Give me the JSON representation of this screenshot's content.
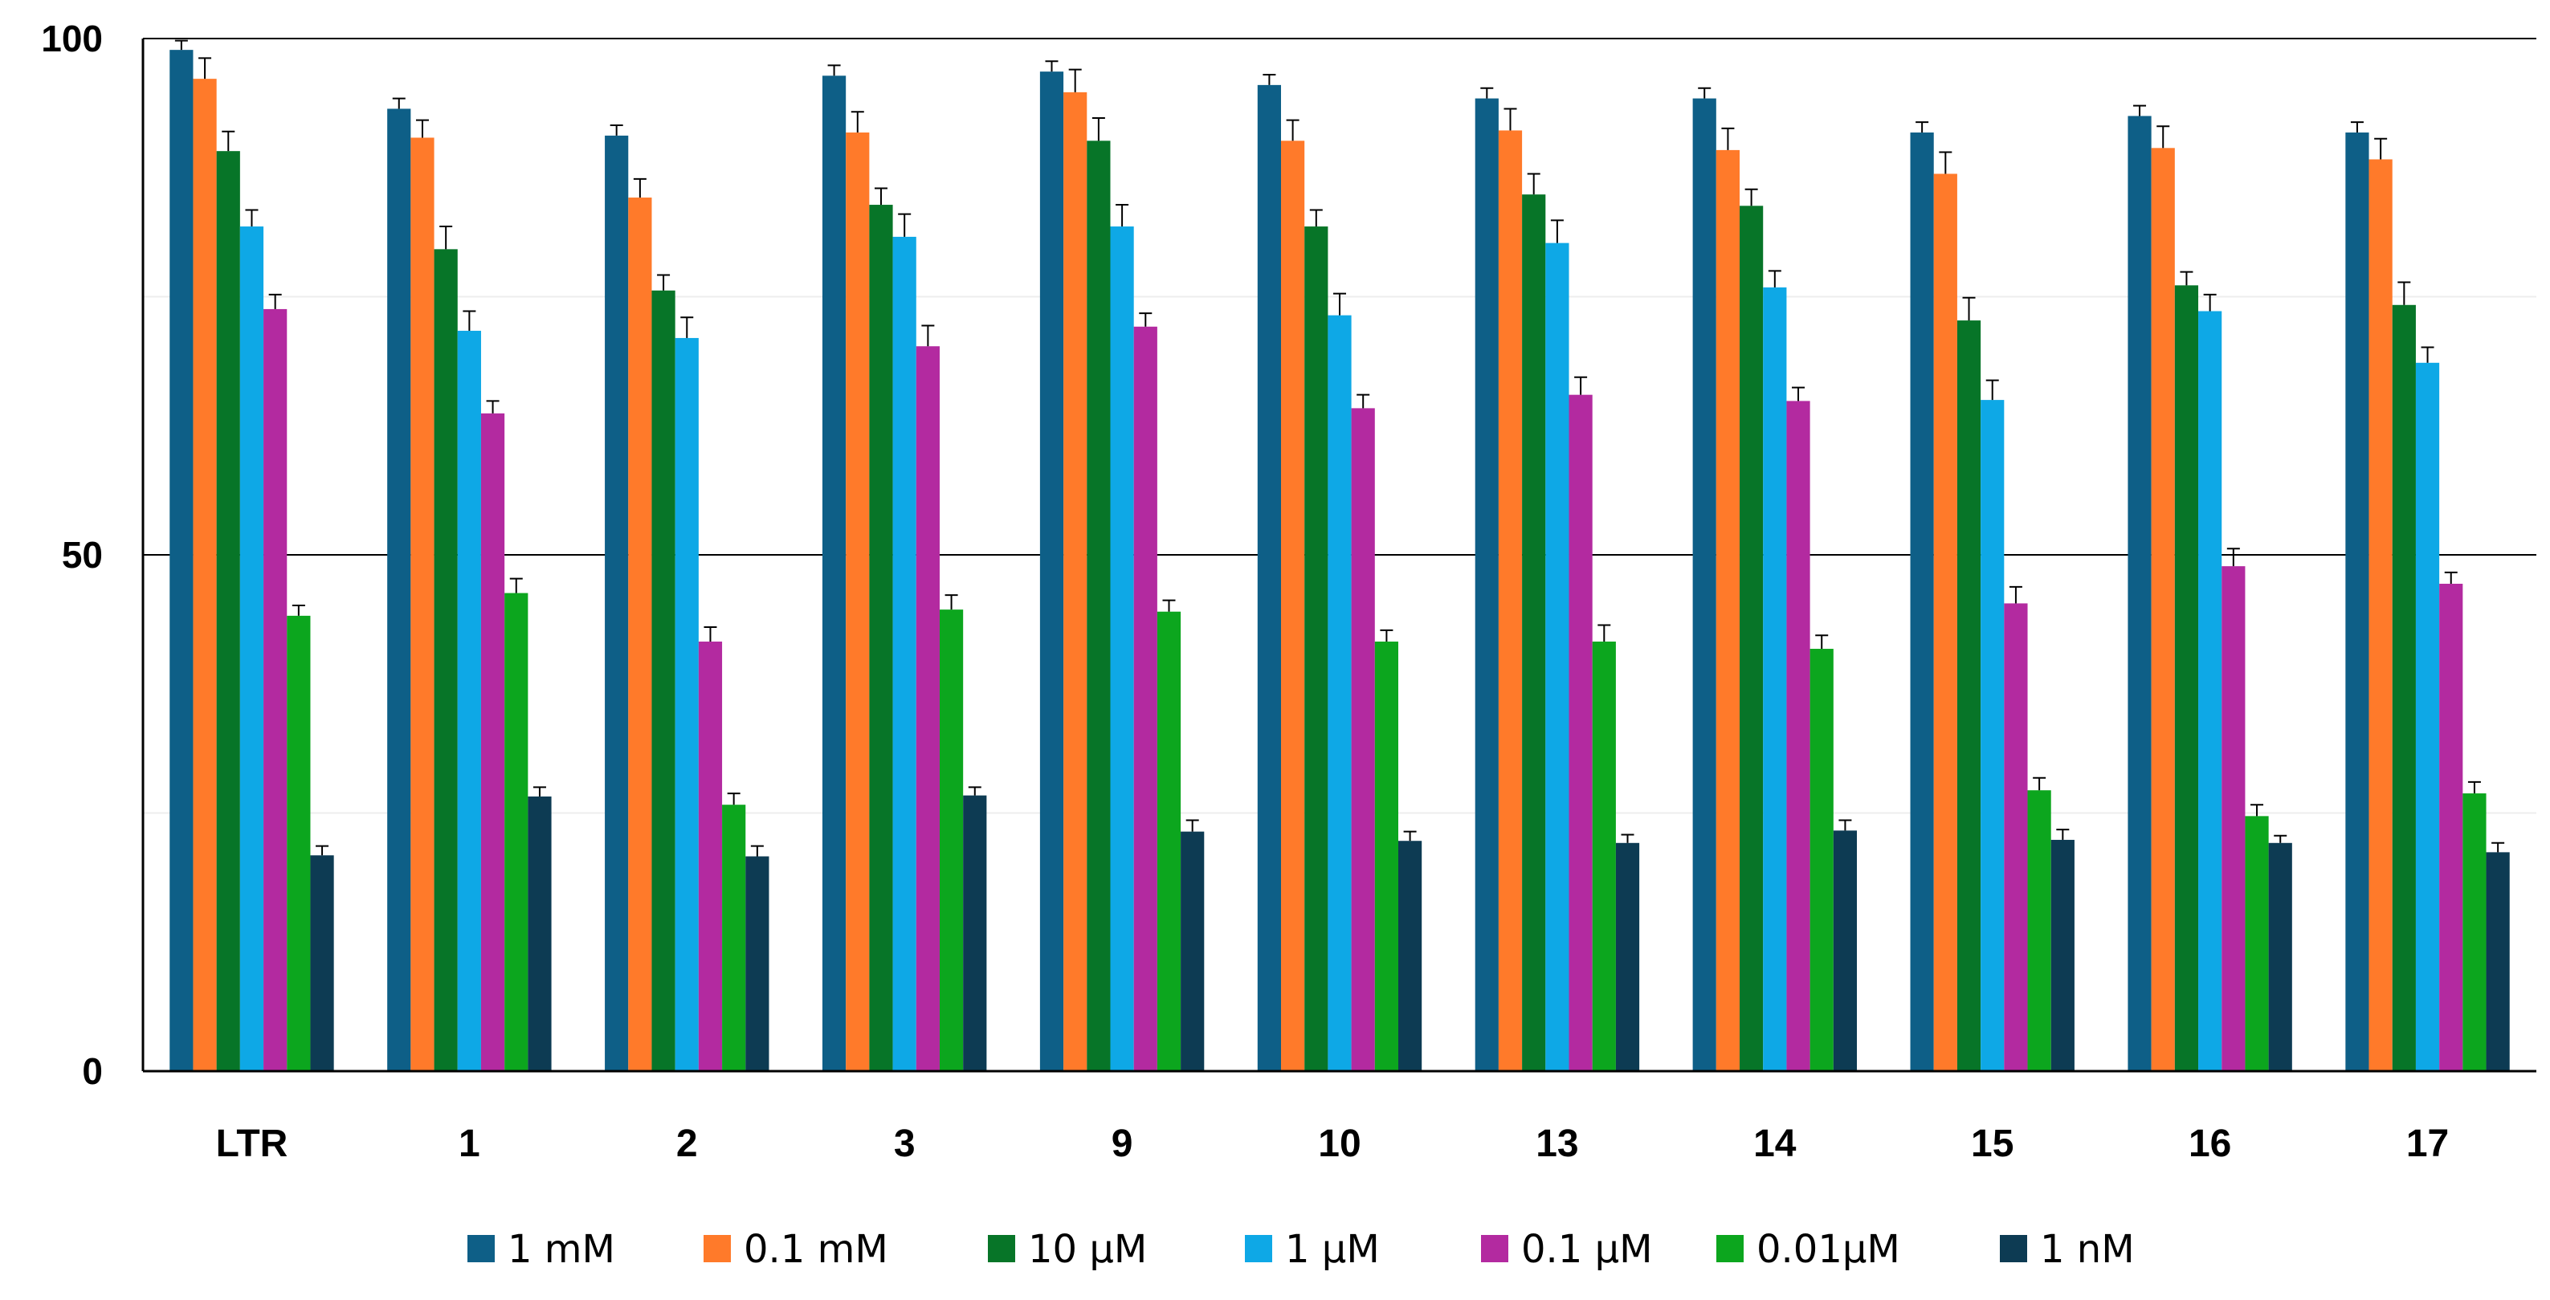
{
  "chart_data": {
    "type": "bar",
    "title": "",
    "xlabel": "",
    "ylabel": "",
    "ylim": [
      0,
      100
    ],
    "yticks": [
      0,
      50,
      100
    ],
    "grid": "horizontal major lines at 50 and 100, faint minor lines at 25 and 75",
    "legend_position": "bottom",
    "categories": [
      "LTR",
      "1",
      "2",
      "3",
      "9",
      "10",
      "13",
      "14",
      "15",
      "16",
      "17"
    ],
    "series": [
      {
        "name": "1 mM",
        "color": "#0e5f87",
        "values": [
          98.9,
          93.2,
          90.6,
          96.4,
          96.8,
          95.5,
          94.2,
          94.2,
          90.9,
          92.5,
          90.9
        ],
        "errors": [
          0.9,
          1.0,
          1.0,
          1.0,
          1.0,
          1.0,
          1.0,
          1.0,
          1.0,
          1.0,
          1.0
        ]
      },
      {
        "name": "0.1 mM",
        "color": "#ff7a2a",
        "values": [
          96.1,
          90.4,
          84.6,
          90.9,
          94.8,
          90.1,
          91.1,
          89.2,
          86.9,
          89.4,
          88.3
        ],
        "errors": [
          2.0,
          1.7,
          1.8,
          2.0,
          2.2,
          2.0,
          2.1,
          2.1,
          2.1,
          2.1,
          2.0
        ]
      },
      {
        "name": "10 µM",
        "color": "#077528",
        "values": [
          89.1,
          79.6,
          75.6,
          83.9,
          90.1,
          81.8,
          84.9,
          83.8,
          72.7,
          76.1,
          74.2
        ],
        "errors": [
          1.9,
          2.2,
          1.5,
          1.6,
          2.2,
          1.6,
          2.0,
          1.6,
          2.2,
          1.3,
          2.2
        ]
      },
      {
        "name": "1 µM",
        "color": "#0ea8e6",
        "values": [
          81.8,
          71.7,
          71.0,
          80.8,
          81.8,
          73.2,
          80.2,
          75.9,
          65.0,
          73.6,
          68.6
        ],
        "errors": [
          1.6,
          1.9,
          2.0,
          2.2,
          2.1,
          2.1,
          2.2,
          1.6,
          1.9,
          1.6,
          1.5
        ]
      },
      {
        "name": "0.1 µM",
        "color": "#b32aa0",
        "values": [
          73.8,
          63.7,
          41.6,
          70.2,
          72.1,
          64.2,
          65.5,
          64.9,
          45.3,
          48.9,
          47.2
        ],
        "errors": [
          1.4,
          1.2,
          1.4,
          2.0,
          1.3,
          1.3,
          1.7,
          1.3,
          1.6,
          1.7,
          1.1
        ]
      },
      {
        "name": "0.01µM",
        "color": "#0ca61e",
        "values": [
          44.1,
          46.3,
          25.8,
          44.7,
          44.5,
          41.6,
          41.6,
          40.9,
          27.2,
          24.7,
          26.9
        ],
        "errors": [
          1.0,
          1.4,
          1.1,
          1.4,
          1.1,
          1.1,
          1.6,
          1.3,
          1.2,
          1.1,
          1.1
        ]
      },
      {
        "name": "1 nM",
        "color": "#0d3b53",
        "values": [
          20.9,
          26.6,
          20.8,
          26.7,
          23.2,
          22.3,
          22.1,
          23.3,
          22.4,
          22.1,
          21.2
        ],
        "errors": [
          0.9,
          0.9,
          1.0,
          0.8,
          1.1,
          0.9,
          0.8,
          1.0,
          1.0,
          0.7,
          0.9
        ]
      }
    ]
  }
}
